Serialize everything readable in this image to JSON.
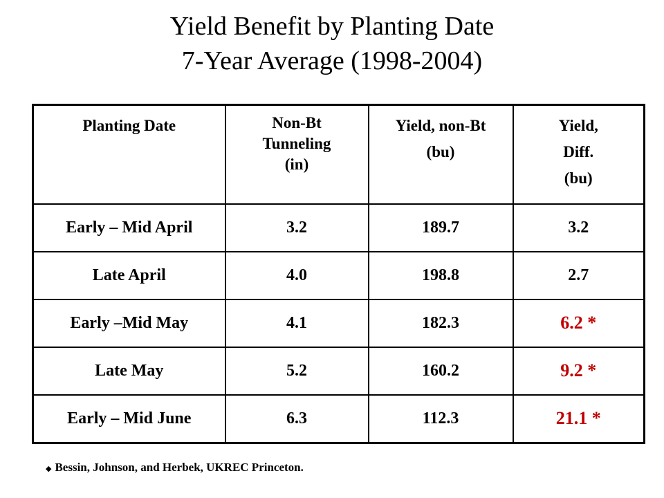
{
  "title": {
    "line1": "Yield Benefit by Planting Date",
    "line2": "7-Year Average (1998-2004)"
  },
  "table": {
    "headers": [
      [
        "Planting Date"
      ],
      [
        "Non-Bt",
        "Tunneling",
        "(in)"
      ],
      [
        "Yield, non-Bt",
        "(bu)"
      ],
      [
        "Yield,",
        "Diff.",
        "(bu)"
      ]
    ],
    "rows": [
      {
        "planting_date": "Early – Mid April",
        "tunneling": "3.2",
        "yield_non_bt": "189.7",
        "yield_diff": "3.2",
        "highlight": false
      },
      {
        "planting_date": "Late April",
        "tunneling": "4.0",
        "yield_non_bt": "198.8",
        "yield_diff": "2.7",
        "highlight": false
      },
      {
        "planting_date": "Early –Mid May",
        "tunneling": "4.1",
        "yield_non_bt": "182.3",
        "yield_diff": "6.2 *",
        "highlight": true
      },
      {
        "planting_date": "Late May",
        "tunneling": "5.2",
        "yield_non_bt": "160.2",
        "yield_diff": "9.2 *",
        "highlight": true
      },
      {
        "planting_date": "Early – Mid June",
        "tunneling": "6.3",
        "yield_non_bt": "112.3",
        "yield_diff": "21.1 *",
        "highlight": true
      }
    ]
  },
  "footnote": {
    "bullet_icon": "diamond-bullet-icon",
    "text": "Bessin, Johnson, and Herbek, UKREC Princeton."
  },
  "colors": {
    "highlight": "#c00000",
    "text": "#000000",
    "background": "#ffffff"
  }
}
